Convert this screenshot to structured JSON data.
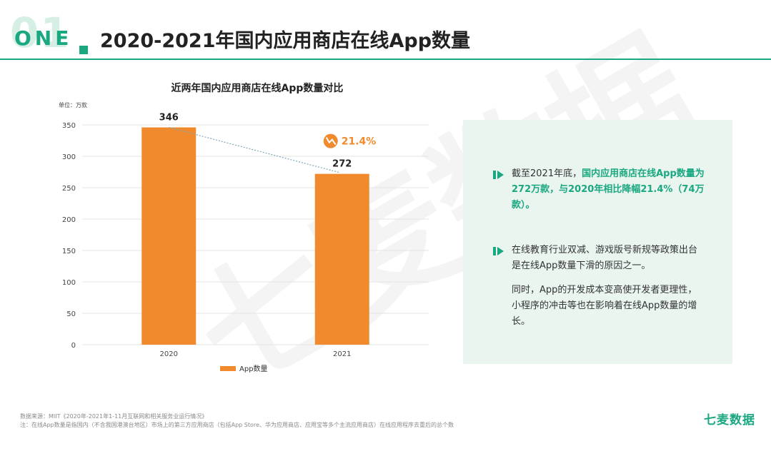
{
  "header": {
    "big_number": "01",
    "section_word": "ONE",
    "title": "2020-2021年国内应用商店在线App数量"
  },
  "chart_data": {
    "type": "bar",
    "title": "近两年国内应用商店在线App数量对比",
    "unit_label": "单位：万款",
    "categories": [
      "2020",
      "2021"
    ],
    "series": [
      {
        "name": "App数量",
        "values": [
          346,
          272
        ]
      }
    ],
    "data_labels": [
      "346",
      "272"
    ],
    "ylim": [
      0,
      350
    ],
    "yticks": [
      0,
      50,
      100,
      150,
      200,
      250,
      300,
      350
    ],
    "grid": true,
    "legend_position": "bottom",
    "annotation": {
      "text": "21.4%",
      "direction": "down"
    },
    "colors": {
      "bar": "#f08a2c",
      "grid": "#e3e3e3",
      "trend": "#7fa7b8",
      "annotation": "#f08a2c"
    }
  },
  "panel": {
    "point1": {
      "prefix": "截至2021年底，",
      "highlight": "国内应用商店在线App数量为272万款，与2020年相比降幅21.4%（74万款）。"
    },
    "point2": {
      "line1": "在线教育行业双减、游戏版号新规等政策出台是在线App数量下滑的原因之一。",
      "line2": "同时，App的开发成本变高使开发者更理性，小程序的冲击等也在影响着在线App数量的增长。"
    },
    "colors": {
      "bg": "#eaf5f0",
      "accent": "#1aa880"
    }
  },
  "watermark": "七麦数据",
  "footer": {
    "source": "数据来源：MIIT《2020年-2021年1-11月互联网和相关服务业运行情况》",
    "note": "注：在线App数量是指国内（不含我国港澳台地区）市场上的第三方应用商店（包括App Store、华为应用商店、应用宝等多个主流应用商店）在线应用程序去重后的总个数",
    "brand": "七麦数据"
  }
}
